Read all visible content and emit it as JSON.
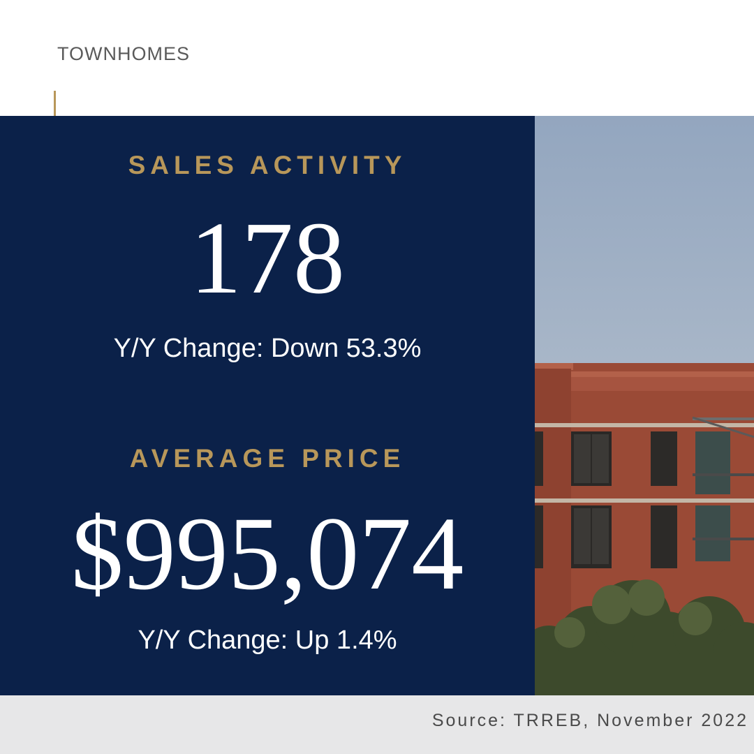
{
  "header": {
    "label": "TOWNHOMES"
  },
  "sales_activity": {
    "title": "SALES ACTIVITY",
    "value": "178",
    "change": "Y/Y Change: Down 53.3%"
  },
  "average_price": {
    "title": "AVERAGE PRICE",
    "value": "$995,074",
    "change": "Y/Y Change: Up 1.4%"
  },
  "photo": {
    "subject": "red brick townhome building with balconies and trees"
  },
  "footer": {
    "source": "Source: TRREB, November 2022"
  },
  "colors": {
    "navy": "#0b2149",
    "gold": "#b8975a",
    "footer_bg": "#e7e7e8",
    "text_gray": "#5a5a5a"
  }
}
